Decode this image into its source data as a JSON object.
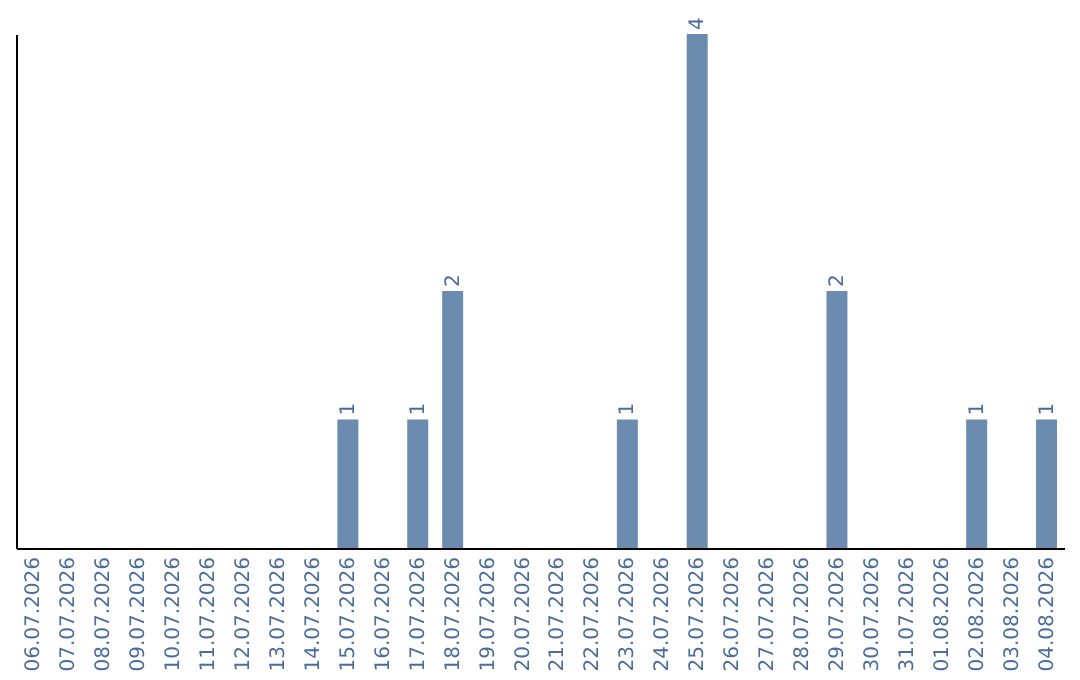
{
  "chart_data": {
    "type": "bar",
    "categories": [
      "06.07.2026",
      "07.07.2026",
      "08.07.2026",
      "09.07.2026",
      "10.07.2026",
      "11.07.2026",
      "12.07.2026",
      "13.07.2026",
      "14.07.2026",
      "15.07.2026",
      "16.07.2026",
      "17.07.2026",
      "18.07.2026",
      "19.07.2026",
      "20.07.2026",
      "21.07.2026",
      "22.07.2026",
      "23.07.2026",
      "24.07.2026",
      "25.07.2026",
      "26.07.2026",
      "27.07.2026",
      "28.07.2026",
      "29.07.2026",
      "30.07.2026",
      "31.07.2026",
      "01.08.2026",
      "02.08.2026",
      "03.08.2026",
      "04.08.2026"
    ],
    "values": [
      0,
      0,
      0,
      0,
      0,
      0,
      0,
      0,
      0,
      1,
      0,
      1,
      2,
      0,
      0,
      0,
      0,
      1,
      0,
      4,
      0,
      0,
      0,
      2,
      0,
      0,
      0,
      1,
      0,
      1
    ],
    "color": "#6b8cae",
    "value_labels": [
      null,
      null,
      null,
      null,
      null,
      null,
      null,
      null,
      null,
      "1",
      null,
      "1",
      "2",
      null,
      null,
      null,
      null,
      "1",
      null,
      "4",
      null,
      null,
      null,
      "2",
      null,
      null,
      null,
      "1",
      null,
      "1"
    ],
    "tick_labels": "x",
    "grid": false
  }
}
